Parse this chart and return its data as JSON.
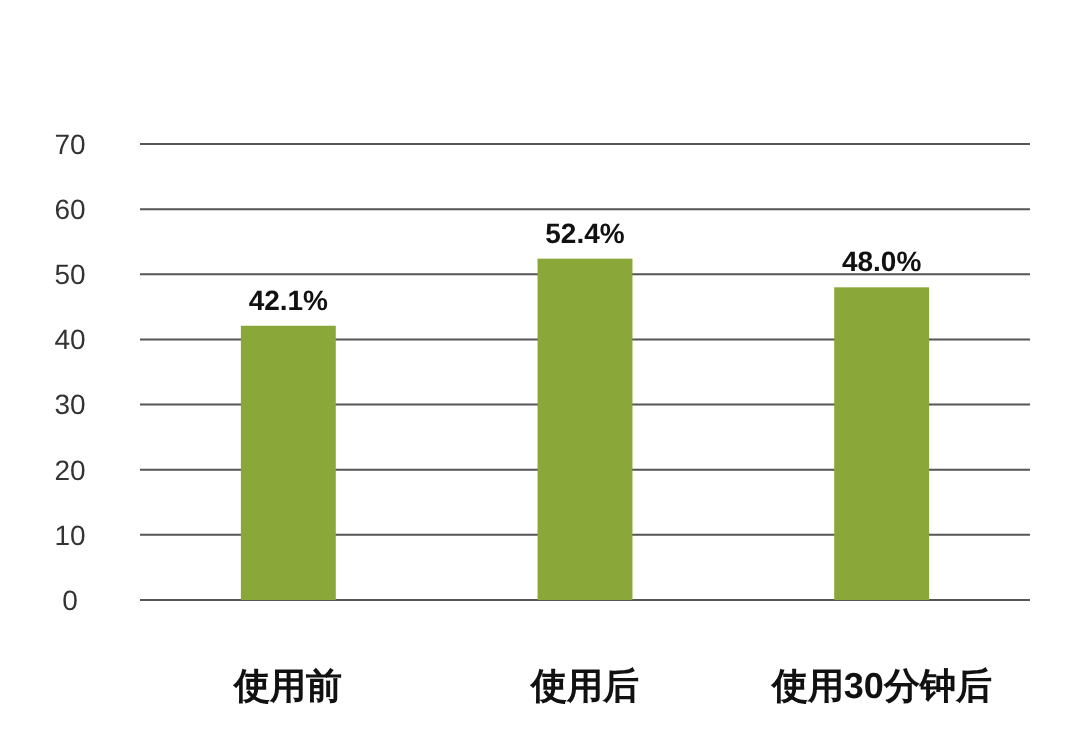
{
  "chart_data": {
    "type": "bar",
    "categories": [
      "使用前",
      "使用后",
      "使用30分钟后"
    ],
    "values": [
      42.1,
      52.4,
      48.0
    ],
    "value_labels": [
      "42.1%",
      "52.4%",
      "48.0%"
    ],
    "color": "#8aa83a",
    "ylim": [
      0,
      70
    ],
    "yticks": [
      0,
      10,
      20,
      30,
      40,
      50,
      60,
      70
    ],
    "grid": "y"
  }
}
